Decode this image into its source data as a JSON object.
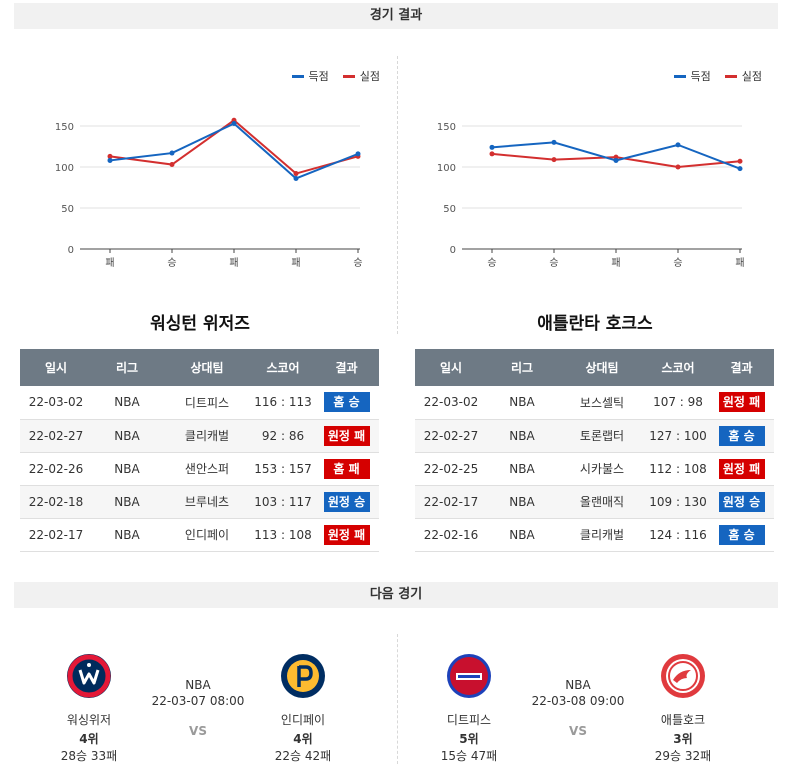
{
  "sections": {
    "results_title": "경기 결과",
    "next_title": "다음 경기"
  },
  "colors": {
    "scored": "#1565c0",
    "conceded": "#d32f2f",
    "header_bg": "#6e7a85",
    "win": "#1565c0",
    "loss": "#d50000"
  },
  "legend": {
    "scored": "득점",
    "conceded": "실점"
  },
  "table_headers": [
    "일시",
    "리그",
    "상대팀",
    "스코어",
    "결과"
  ],
  "teams": [
    {
      "name": "워싱턴 위저즈",
      "chart_data": {
        "type": "line",
        "categories": [
          "패",
          "승",
          "패",
          "패",
          "승"
        ],
        "series": [
          {
            "name": "득점",
            "values": [
              108,
              117,
              153,
              86,
              116
            ]
          },
          {
            "name": "실점",
            "values": [
              113,
              103,
              157,
              92,
              113
            ]
          }
        ],
        "ylim": [
          0,
          150
        ],
        "yticks": [
          0,
          50,
          100,
          150
        ],
        "legend_position": "top-right",
        "grid": true
      },
      "games": [
        {
          "date": "22-03-02",
          "league": "NBA",
          "opponent": "디트피스",
          "score": "116 : 113",
          "result": "홈 승",
          "win": true
        },
        {
          "date": "22-02-27",
          "league": "NBA",
          "opponent": "클리캐벌",
          "score": "92 : 86",
          "result": "원정 패",
          "win": false
        },
        {
          "date": "22-02-26",
          "league": "NBA",
          "opponent": "샌안스퍼",
          "score": "153 : 157",
          "result": "홈 패",
          "win": false
        },
        {
          "date": "22-02-18",
          "league": "NBA",
          "opponent": "브루네츠",
          "score": "103 : 117",
          "result": "원정 승",
          "win": true
        },
        {
          "date": "22-02-17",
          "league": "NBA",
          "opponent": "인디페이",
          "score": "113 : 108",
          "result": "원정 패",
          "win": false
        }
      ]
    },
    {
      "name": "애틀란타 호크스",
      "chart_data": {
        "type": "line",
        "categories": [
          "승",
          "승",
          "패",
          "승",
          "패"
        ],
        "series": [
          {
            "name": "득점",
            "values": [
              124,
              130,
              108,
              127,
              98
            ]
          },
          {
            "name": "실점",
            "values": [
              116,
              109,
              112,
              100,
              107
            ]
          }
        ],
        "ylim": [
          0,
          150
        ],
        "yticks": [
          0,
          50,
          100,
          150
        ],
        "legend_position": "top-right",
        "grid": true
      },
      "games": [
        {
          "date": "22-03-02",
          "league": "NBA",
          "opponent": "보스셀틱",
          "score": "107 : 98",
          "result": "원정 패",
          "win": false
        },
        {
          "date": "22-02-27",
          "league": "NBA",
          "opponent": "토론랩터",
          "score": "127 : 100",
          "result": "홈 승",
          "win": true
        },
        {
          "date": "22-02-25",
          "league": "NBA",
          "opponent": "시카불스",
          "score": "112 : 108",
          "result": "원정 패",
          "win": false
        },
        {
          "date": "22-02-17",
          "league": "NBA",
          "opponent": "올랜매직",
          "score": "109 : 130",
          "result": "원정 승",
          "win": true
        },
        {
          "date": "22-02-16",
          "league": "NBA",
          "opponent": "클리캐벌",
          "score": "124 : 116",
          "result": "홈 승",
          "win": true
        }
      ]
    }
  ],
  "next_games": [
    {
      "league": "NBA",
      "datetime": "22-03-07 08:00",
      "vs": "VS",
      "home": {
        "name": "워싱위저",
        "rank": "4위",
        "record": "28승 33패",
        "logo_icon": "wizards-logo-icon",
        "logo_color": "#e31837"
      },
      "away": {
        "name": "인디페이",
        "rank": "4위",
        "record": "22승 42패",
        "logo_icon": "pacers-logo-icon",
        "logo_color": "#fdbb30"
      }
    },
    {
      "league": "NBA",
      "datetime": "22-03-08 09:00",
      "vs": "VS",
      "home": {
        "name": "디트피스",
        "rank": "5위",
        "record": "15승 47패",
        "logo_icon": "pistons-logo-icon",
        "logo_color": "#c8102e"
      },
      "away": {
        "name": "애틀호크",
        "rank": "3위",
        "record": "29승 32패",
        "logo_icon": "hawks-logo-icon",
        "logo_color": "#e03a3e"
      }
    }
  ]
}
